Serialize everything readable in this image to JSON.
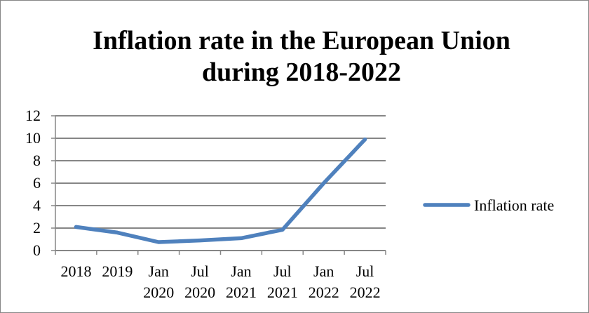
{
  "chart_data": {
    "type": "line",
    "title_lines": [
      "Inflation rate in the European Union",
      "during 2018-2022"
    ],
    "categories": [
      [
        "2018"
      ],
      [
        "2019"
      ],
      [
        "Jan",
        "2020"
      ],
      [
        "Jul",
        "2020"
      ],
      [
        "Jan",
        "2021"
      ],
      [
        "Jul",
        "2021"
      ],
      [
        "Jan",
        "2022"
      ],
      [
        "Jul",
        "2022"
      ]
    ],
    "series": [
      {
        "name": "Inflation rate",
        "color": "#4f81bd",
        "values": [
          2.1,
          1.6,
          0.75,
          0.9,
          1.1,
          1.85,
          6.0,
          9.9
        ]
      }
    ],
    "ylim": [
      0,
      12
    ],
    "yticks": [
      0,
      2,
      4,
      6,
      8,
      10,
      12
    ],
    "grid": true,
    "legend_position": "right"
  }
}
